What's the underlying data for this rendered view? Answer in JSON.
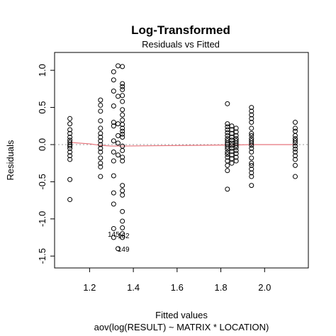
{
  "chart_data": {
    "type": "scatter",
    "title": "Log-Transformed",
    "subtitle": "Residuals vs Fitted",
    "xlabel": "Fitted values",
    "ylabel": "Residuals",
    "sub_xlabel": "aov(log(RESULT) ~ MATRIX * LOCATION)",
    "xlim": [
      1.04,
      2.2
    ],
    "ylim": [
      -1.66,
      1.24
    ],
    "x_ticks": [
      1.2,
      1.4,
      1.6,
      1.8,
      2.0
    ],
    "x_tick_labels": [
      "1.2",
      "1.4",
      "1.6",
      "1.8",
      "2.0"
    ],
    "y_ticks": [
      -1.5,
      -1.0,
      -0.5,
      0.0,
      0.5,
      1.0
    ],
    "y_tick_labels": [
      "-1.5",
      "-1.0",
      "-0.5",
      "0.0",
      "0.5",
      "1.0"
    ],
    "zero_line": 0.0,
    "smooth_line": {
      "color": "#e8747c",
      "x": [
        1.11,
        1.2,
        1.25,
        1.3,
        1.33,
        1.35,
        1.5,
        1.7,
        1.83,
        1.87,
        1.94,
        2.14
      ],
      "y": [
        0.03,
        0.01,
        -0.01,
        -0.02,
        -0.02,
        -0.02,
        -0.015,
        -0.01,
        -0.005,
        -0.005,
        0.0,
        0.0
      ]
    },
    "point_labels": [
      {
        "text": "145",
        "x": 1.31,
        "y": -1.24
      },
      {
        "text": "162",
        "x": 1.355,
        "y": -1.26
      },
      {
        "text": "149",
        "x": 1.355,
        "y": -1.44
      }
    ],
    "series": [
      {
        "x": 1.11,
        "y": [
          0.35,
          0.28,
          0.2,
          0.15,
          0.1,
          0.06,
          0.03,
          0.0,
          -0.02,
          -0.05,
          -0.1,
          -0.15,
          -0.2,
          -0.47,
          -0.74
        ]
      },
      {
        "x": 1.25,
        "y": [
          0.6,
          0.53,
          0.45,
          0.32,
          0.22,
          0.15,
          0.1,
          0.05,
          0.0,
          -0.05,
          -0.1,
          -0.18,
          -0.25,
          -0.3,
          -0.43
        ]
      },
      {
        "x": 1.31,
        "y": [
          0.98,
          0.87,
          0.72,
          0.52,
          0.3,
          0.25,
          0.05,
          -0.1,
          -0.22,
          -0.42,
          -0.65,
          -0.8,
          -1.13,
          -1.25
        ]
      },
      {
        "x": 1.33,
        "y": [
          1.06,
          0.65,
          0.28,
          0.12,
          0.02,
          -0.14,
          -1.4
        ]
      },
      {
        "x": 1.35,
        "y": [
          1.05,
          0.82,
          0.78,
          0.74,
          0.66,
          0.58,
          0.47,
          0.4,
          0.33,
          0.27,
          0.22,
          0.18,
          0.14,
          0.1,
          -0.02,
          -0.08,
          -0.17,
          -0.22,
          -0.55,
          -0.62,
          -0.68,
          -0.9,
          -1.03,
          -1.12,
          -1.2,
          -1.25
        ]
      },
      {
        "x": 1.83,
        "y": [
          0.55,
          0.28,
          0.24,
          0.2,
          0.16,
          0.12,
          0.08,
          0.05,
          0.02,
          0.0,
          -0.03,
          -0.06,
          -0.1,
          -0.13,
          -0.17,
          -0.22,
          -0.28,
          -0.35,
          -0.6
        ]
      },
      {
        "x": 1.85,
        "y": [
          0.25,
          0.2,
          0.15,
          0.1,
          0.06,
          0.02,
          -0.01,
          -0.05,
          -0.09,
          -0.14,
          -0.19,
          -0.25
        ]
      },
      {
        "x": 1.87,
        "y": [
          0.22,
          0.17,
          0.12,
          0.08,
          0.05,
          0.02,
          -0.01,
          -0.04,
          -0.08,
          -0.12,
          -0.17,
          -0.22
        ]
      },
      {
        "x": 1.94,
        "y": [
          0.5,
          0.45,
          0.4,
          0.35,
          0.3,
          0.22,
          0.15,
          0.12,
          0.08,
          0.05,
          0.02,
          -0.01,
          -0.05,
          -0.1,
          -0.18,
          -0.25,
          -0.28,
          -0.33,
          -0.38,
          -0.43,
          -0.55
        ]
      },
      {
        "x": 2.14,
        "y": [
          0.3,
          0.22,
          0.18,
          0.12,
          0.08,
          0.05,
          0.02,
          -0.02,
          -0.06,
          -0.1,
          -0.15,
          -0.2,
          -0.28,
          -0.43
        ]
      }
    ]
  }
}
